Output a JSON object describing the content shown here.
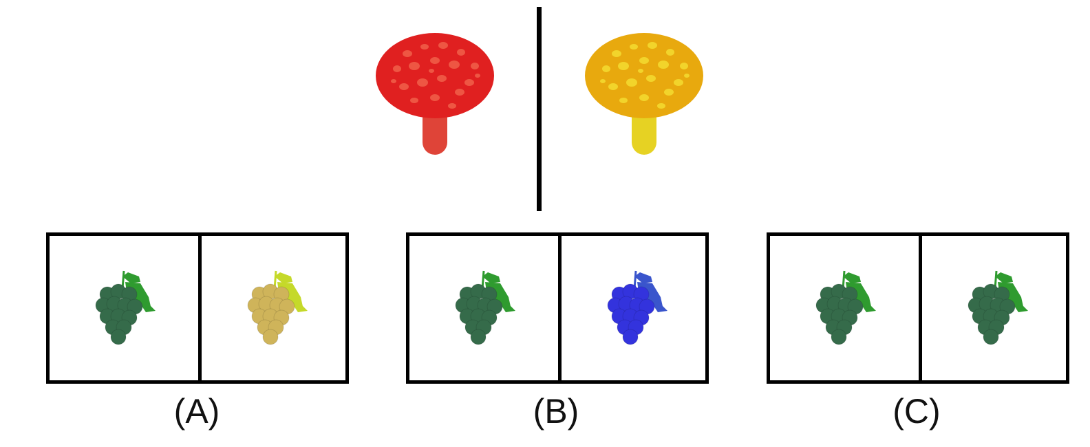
{
  "example": {
    "left": {
      "object": "mushroom-icon",
      "cap_color": "#e02020",
      "spot_color": "#f0604a",
      "stem_color": "#df4438"
    },
    "right": {
      "object": "mushroom-icon",
      "cap_color": "#e8a90e",
      "spot_color": "#f3dc30",
      "stem_color": "#e6d223"
    }
  },
  "options": [
    {
      "label": "(A)",
      "left": {
        "object": "grapes-icon",
        "berry_color": "#356b4a",
        "leaf_color": "#2f9b2f"
      },
      "right": {
        "object": "grapes-icon",
        "berry_color": "#cfb45a",
        "leaf_color": "#c5d92a"
      }
    },
    {
      "label": "(B)",
      "left": {
        "object": "grapes-icon",
        "berry_color": "#356b4a",
        "leaf_color": "#2f9b2f"
      },
      "right": {
        "object": "grapes-icon",
        "berry_color": "#3333dd",
        "leaf_color": "#3a55cc"
      }
    },
    {
      "label": "(C)",
      "left": {
        "object": "grapes-icon",
        "berry_color": "#356b4a",
        "leaf_color": "#2f9b2f"
      },
      "right": {
        "object": "grapes-icon",
        "berry_color": "#356b4a",
        "leaf_color": "#2f9b2f"
      }
    }
  ]
}
